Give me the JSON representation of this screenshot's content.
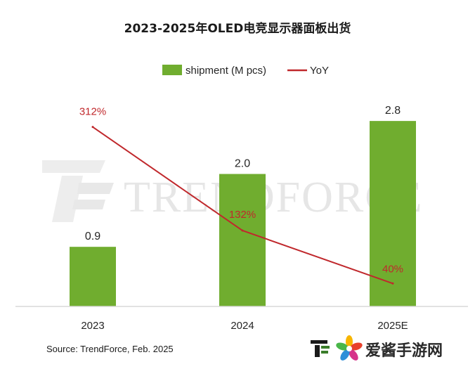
{
  "chart_data": {
    "type": "bar",
    "title": "2023-2025年OLED电竞显示器面板出货",
    "categories": [
      "2023",
      "2024",
      "2025E"
    ],
    "series": [
      {
        "name": "shipment (M pcs)",
        "kind": "bar",
        "color": "#70ad2f",
        "values": [
          0.9,
          2.0,
          2.8
        ],
        "labels": [
          "0.9",
          "2.0",
          "2.8"
        ]
      },
      {
        "name": "YoY",
        "kind": "line",
        "color": "#c0282c",
        "values": [
          312,
          132,
          40
        ],
        "labels": [
          "312%",
          "132%",
          "40%"
        ]
      }
    ],
    "ylim_bar": [
      0,
      3.3
    ],
    "ylim_line": [
      0,
      380
    ],
    "legend_position": "top-center",
    "grid": false,
    "source": "Source: TrendForce, Feb. 2025"
  },
  "watermark": {
    "text": "TRENDFORCE"
  },
  "corner_brand": {
    "text": "爱酱手游网"
  },
  "colors": {
    "bar": "#70ad2f",
    "line": "#c0282c",
    "axis": "#d9d9d9"
  }
}
